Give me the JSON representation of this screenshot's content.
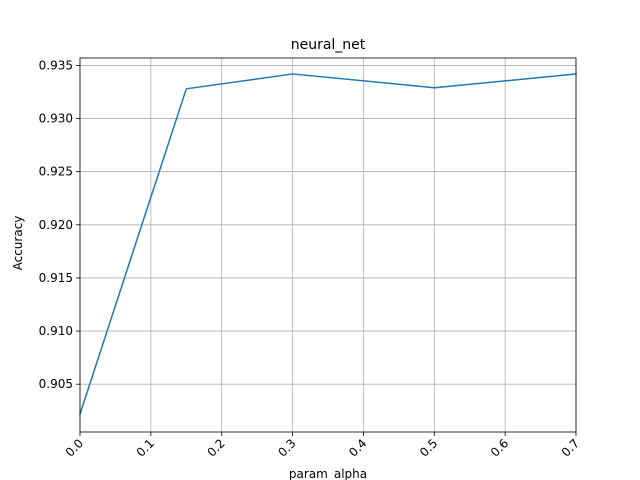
{
  "chart_data": {
    "type": "line",
    "title": "neural_net",
    "xlabel": "param_alpha",
    "ylabel": "Accuracy",
    "xlim": [
      0.0,
      0.7
    ],
    "ylim": [
      0.9005,
      0.9357
    ],
    "xticks": [
      0.0,
      0.1,
      0.2,
      0.3,
      0.4,
      0.5,
      0.6,
      0.7
    ],
    "xtick_labels": [
      "0.0",
      "0.1",
      "0.2",
      "0.3",
      "0.4",
      "0.5",
      "0.6",
      "0.7"
    ],
    "yticks": [
      0.905,
      0.91,
      0.915,
      0.92,
      0.925,
      0.93,
      0.935
    ],
    "ytick_labels": [
      "0.905",
      "0.910",
      "0.915",
      "0.920",
      "0.925",
      "0.930",
      "0.935"
    ],
    "grid": true,
    "series": [
      {
        "color": "#1f77b4",
        "x": [
          0.0,
          0.15,
          0.3,
          0.5,
          0.7
        ],
        "y": [
          0.9022,
          0.9328,
          0.9342,
          0.9329,
          0.9342
        ]
      }
    ]
  }
}
